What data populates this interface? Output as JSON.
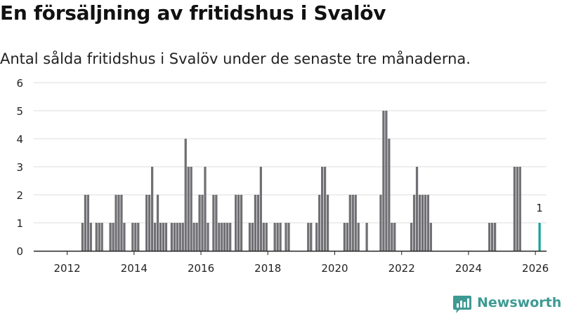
{
  "title": "En försäljning av fritidshus i Svalöv",
  "subtitle": "Antal sålda fritidshus i Svalöv under de senaste tre månaderna.",
  "brand": {
    "name": "Newsworthy",
    "color": "#3e9a93"
  },
  "colors": {
    "bar": "#707074",
    "highlight": "#1aa399",
    "grid": "#dddddd",
    "axis": "#222222"
  },
  "chart_data": {
    "type": "bar",
    "title": "En försäljning av fritidshus i Svalöv",
    "subtitle": "Antal sålda fritidshus i Svalöv under de senaste tre månaderna.",
    "x_unit": "month",
    "xlim": [
      "2011-01",
      "2026-05"
    ],
    "ylim": [
      0,
      6
    ],
    "yticks": [
      "0",
      "1",
      "2",
      "3",
      "4",
      "5",
      "6"
    ],
    "xticks": [
      {
        "label": "2012",
        "date": "2012-01"
      },
      {
        "label": "2014",
        "date": "2014-01"
      },
      {
        "label": "2016",
        "date": "2016-01"
      },
      {
        "label": "2018",
        "date": "2018-01"
      },
      {
        "label": "2020",
        "date": "2020-01"
      },
      {
        "label": "2022",
        "date": "2022-01"
      },
      {
        "label": "2024",
        "date": "2024-01"
      },
      {
        "label": "2026",
        "date": "2026-01"
      }
    ],
    "grid": true,
    "legend": false,
    "values": [
      {
        "date": "2012-06",
        "value": 1
      },
      {
        "date": "2012-07",
        "value": 2
      },
      {
        "date": "2012-08",
        "value": 2
      },
      {
        "date": "2012-09",
        "value": 1
      },
      {
        "date": "2012-11",
        "value": 1
      },
      {
        "date": "2012-12",
        "value": 1
      },
      {
        "date": "2013-01",
        "value": 1
      },
      {
        "date": "2013-04",
        "value": 1
      },
      {
        "date": "2013-05",
        "value": 1
      },
      {
        "date": "2013-06",
        "value": 2
      },
      {
        "date": "2013-07",
        "value": 2
      },
      {
        "date": "2013-08",
        "value": 2
      },
      {
        "date": "2013-09",
        "value": 1
      },
      {
        "date": "2013-12",
        "value": 1
      },
      {
        "date": "2014-01",
        "value": 1
      },
      {
        "date": "2014-02",
        "value": 1
      },
      {
        "date": "2014-05",
        "value": 2
      },
      {
        "date": "2014-06",
        "value": 2
      },
      {
        "date": "2014-07",
        "value": 3
      },
      {
        "date": "2014-08",
        "value": 1
      },
      {
        "date": "2014-09",
        "value": 2
      },
      {
        "date": "2014-10",
        "value": 1
      },
      {
        "date": "2014-11",
        "value": 1
      },
      {
        "date": "2014-12",
        "value": 1
      },
      {
        "date": "2015-02",
        "value": 1
      },
      {
        "date": "2015-03",
        "value": 1
      },
      {
        "date": "2015-04",
        "value": 1
      },
      {
        "date": "2015-05",
        "value": 1
      },
      {
        "date": "2015-06",
        "value": 1
      },
      {
        "date": "2015-07",
        "value": 4
      },
      {
        "date": "2015-08",
        "value": 3
      },
      {
        "date": "2015-09",
        "value": 3
      },
      {
        "date": "2015-10",
        "value": 1
      },
      {
        "date": "2015-11",
        "value": 1
      },
      {
        "date": "2015-12",
        "value": 2
      },
      {
        "date": "2016-01",
        "value": 2
      },
      {
        "date": "2016-02",
        "value": 3
      },
      {
        "date": "2016-03",
        "value": 1
      },
      {
        "date": "2016-05",
        "value": 2
      },
      {
        "date": "2016-06",
        "value": 2
      },
      {
        "date": "2016-07",
        "value": 1
      },
      {
        "date": "2016-08",
        "value": 1
      },
      {
        "date": "2016-09",
        "value": 1
      },
      {
        "date": "2016-10",
        "value": 1
      },
      {
        "date": "2016-11",
        "value": 1
      },
      {
        "date": "2017-01",
        "value": 2
      },
      {
        "date": "2017-02",
        "value": 2
      },
      {
        "date": "2017-03",
        "value": 2
      },
      {
        "date": "2017-06",
        "value": 1
      },
      {
        "date": "2017-07",
        "value": 1
      },
      {
        "date": "2017-08",
        "value": 2
      },
      {
        "date": "2017-09",
        "value": 2
      },
      {
        "date": "2017-10",
        "value": 3
      },
      {
        "date": "2017-11",
        "value": 1
      },
      {
        "date": "2017-12",
        "value": 1
      },
      {
        "date": "2018-03",
        "value": 1
      },
      {
        "date": "2018-04",
        "value": 1
      },
      {
        "date": "2018-05",
        "value": 1
      },
      {
        "date": "2018-07",
        "value": 1
      },
      {
        "date": "2018-08",
        "value": 1
      },
      {
        "date": "2019-03",
        "value": 1
      },
      {
        "date": "2019-04",
        "value": 1
      },
      {
        "date": "2019-06",
        "value": 1
      },
      {
        "date": "2019-07",
        "value": 2
      },
      {
        "date": "2019-08",
        "value": 3
      },
      {
        "date": "2019-09",
        "value": 3
      },
      {
        "date": "2019-10",
        "value": 2
      },
      {
        "date": "2020-04",
        "value": 1
      },
      {
        "date": "2020-05",
        "value": 1
      },
      {
        "date": "2020-06",
        "value": 2
      },
      {
        "date": "2020-07",
        "value": 2
      },
      {
        "date": "2020-08",
        "value": 2
      },
      {
        "date": "2020-09",
        "value": 1
      },
      {
        "date": "2020-12",
        "value": 1
      },
      {
        "date": "2021-05",
        "value": 2
      },
      {
        "date": "2021-06",
        "value": 5
      },
      {
        "date": "2021-07",
        "value": 5
      },
      {
        "date": "2021-08",
        "value": 4
      },
      {
        "date": "2021-09",
        "value": 1
      },
      {
        "date": "2021-10",
        "value": 1
      },
      {
        "date": "2022-04",
        "value": 1
      },
      {
        "date": "2022-05",
        "value": 2
      },
      {
        "date": "2022-06",
        "value": 3
      },
      {
        "date": "2022-07",
        "value": 2
      },
      {
        "date": "2022-08",
        "value": 2
      },
      {
        "date": "2022-09",
        "value": 2
      },
      {
        "date": "2022-10",
        "value": 2
      },
      {
        "date": "2022-11",
        "value": 1
      },
      {
        "date": "2024-08",
        "value": 1
      },
      {
        "date": "2024-09",
        "value": 1
      },
      {
        "date": "2024-10",
        "value": 1
      },
      {
        "date": "2025-05",
        "value": 3
      },
      {
        "date": "2025-06",
        "value": 3
      },
      {
        "date": "2025-07",
        "value": 3
      },
      {
        "date": "2026-02",
        "value": 1,
        "highlight": true,
        "label": "1"
      }
    ]
  }
}
